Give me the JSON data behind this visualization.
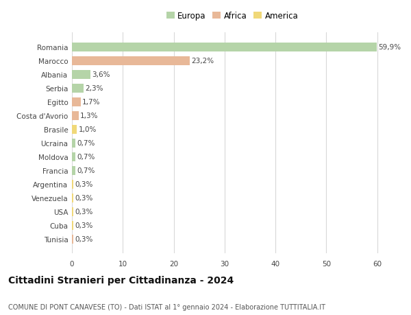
{
  "countries": [
    "Romania",
    "Marocco",
    "Albania",
    "Serbia",
    "Egitto",
    "Costa d'Avorio",
    "Brasile",
    "Ucraina",
    "Moldova",
    "Francia",
    "Argentina",
    "Venezuela",
    "USA",
    "Cuba",
    "Tunisia"
  ],
  "values": [
    59.9,
    23.2,
    3.6,
    2.3,
    1.7,
    1.3,
    1.0,
    0.7,
    0.7,
    0.7,
    0.3,
    0.3,
    0.3,
    0.3,
    0.3
  ],
  "labels": [
    "59,9%",
    "23,2%",
    "3,6%",
    "2,3%",
    "1,7%",
    "1,3%",
    "1,0%",
    "0,7%",
    "0,7%",
    "0,7%",
    "0,3%",
    "0,3%",
    "0,3%",
    "0,3%",
    "0,3%"
  ],
  "colors": [
    "#b5d4a8",
    "#e8b898",
    "#b5d4a8",
    "#b5d4a8",
    "#e8b898",
    "#e8b898",
    "#f0d878",
    "#b5d4a8",
    "#b5d4a8",
    "#b5d4a8",
    "#f0d878",
    "#f0d878",
    "#f0d878",
    "#f0d878",
    "#e8b898"
  ],
  "legend_labels": [
    "Europa",
    "Africa",
    "America"
  ],
  "legend_colors": [
    "#b5d4a8",
    "#e8b898",
    "#f0d878"
  ],
  "title": "Cittadini Stranieri per Cittadinanza - 2024",
  "subtitle": "COMUNE DI PONT CANAVESE (TO) - Dati ISTAT al 1° gennaio 2024 - Elaborazione TUTTITALIA.IT",
  "xlim": [
    0,
    63
  ],
  "xticks": [
    0,
    10,
    20,
    30,
    40,
    50,
    60
  ],
  "bg_color": "#ffffff",
  "grid_color": "#d8d8d8",
  "bar_height": 0.65,
  "label_fontsize": 7.5,
  "tick_fontsize": 7.5,
  "title_fontsize": 10,
  "subtitle_fontsize": 7
}
